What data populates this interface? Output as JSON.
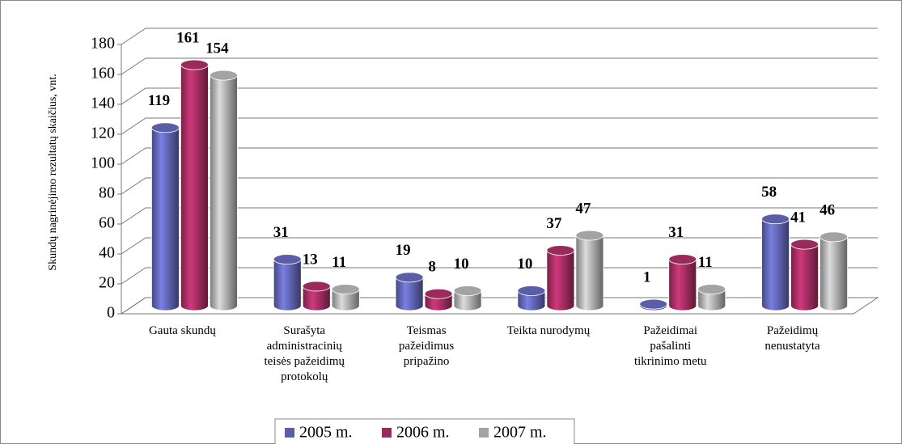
{
  "chart_data": {
    "type": "bar",
    "y_axis_label": "Skundų nagrinėjimo rezultatų skaičius, vnt.",
    "categories": [
      "Gauta skundų",
      "Surašyta\nadministracinių\nteisės pažeidimų\nprotokolų",
      "Teismas\npažeidimus\npripažino",
      "Teikta nurodymų",
      "Pažeidimai\npašalinti\ntikrinimo metu",
      "Pažeidimų\nnenustatyta"
    ],
    "series": [
      {
        "name": "2005 m.",
        "color": "#5a5ea8",
        "values": [
          119,
          31,
          19,
          10,
          1,
          58
        ]
      },
      {
        "name": "2006 m.",
        "color": "#9a2a5c",
        "values": [
          161,
          13,
          8,
          37,
          31,
          41
        ]
      },
      {
        "name": "2007 m.",
        "color": "#a3a3a3",
        "values": [
          154,
          11,
          10,
          47,
          11,
          46
        ]
      }
    ],
    "ylim": [
      0,
      180
    ],
    "yticks": [
      0,
      20,
      40,
      60,
      80,
      100,
      120,
      140,
      160,
      180
    ],
    "grid": true,
    "legend": "bottom"
  }
}
